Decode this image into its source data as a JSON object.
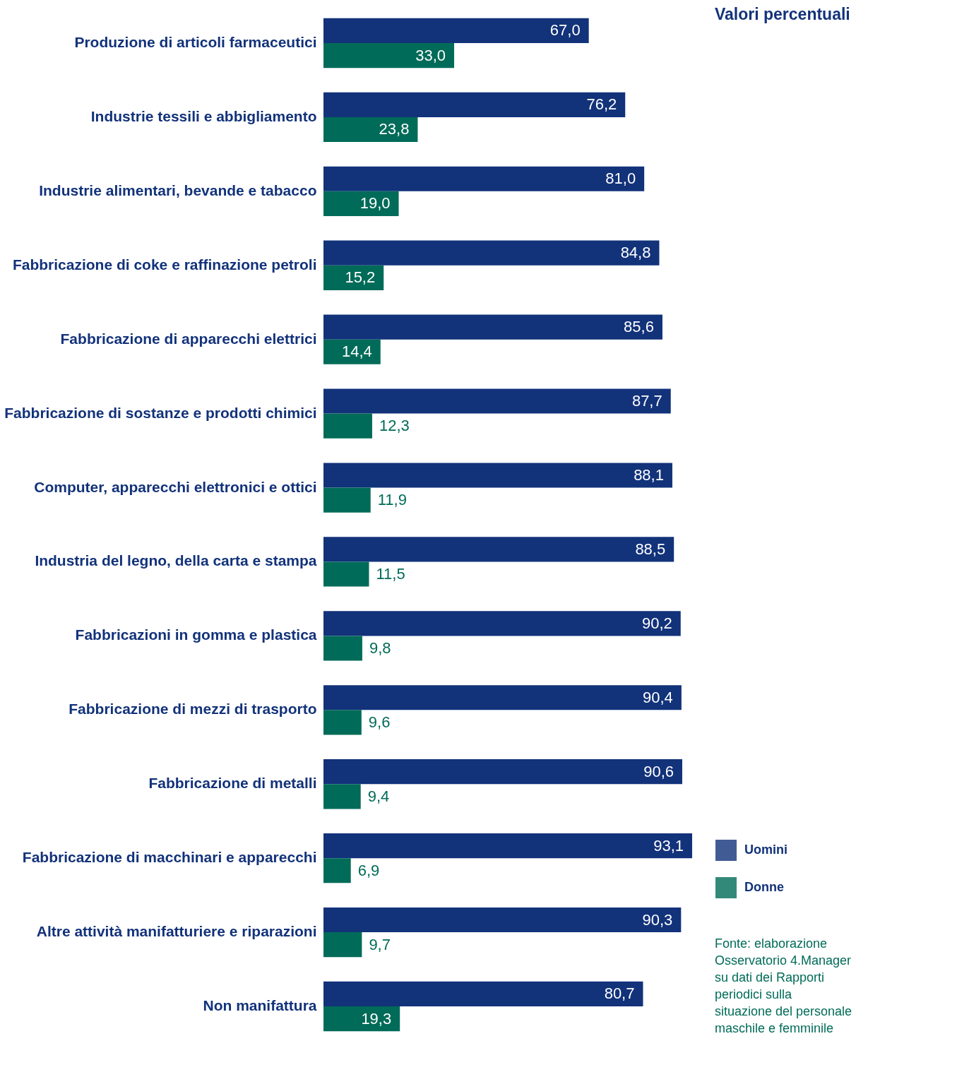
{
  "chart_data": {
    "type": "bar",
    "orientation": "horizontal",
    "title": "Valori percentuali",
    "categories": [
      "Produzione di articoli farmaceutici",
      "Industrie tessili e abbigliamento",
      "Industrie alimentari, bevande e tabacco",
      "Fabbricazione di coke e raffinazione petroli",
      "Fabbricazione di apparecchi elettrici",
      "Fabbricazione di sostanze e prodotti chimici",
      "Computer, apparecchi elettronici e ottici",
      "Industria del legno, della carta e stampa",
      "Fabbricazioni in gomma e plastica",
      "Fabbricazione di mezzi di trasporto",
      "Fabbricazione di metalli",
      "Fabbricazione di macchinari e apparecchi",
      "Altre attività manifatturiere e riparazioni",
      "Non manifattura"
    ],
    "series": [
      {
        "name": "Uomini",
        "color": "#12327a",
        "values": [
          67.0,
          76.2,
          81.0,
          84.8,
          85.6,
          87.7,
          88.1,
          88.5,
          90.2,
          90.4,
          90.6,
          93.1,
          90.3,
          80.7
        ],
        "value_labels": [
          "67,0",
          "76,2",
          "81,0",
          "84,8",
          "85,6",
          "87,7",
          "88,1",
          "88,5",
          "90,2",
          "90,4",
          "90,6",
          "93,1",
          "90,3",
          "80,7"
        ]
      },
      {
        "name": "Donne",
        "color": "#006b58",
        "values": [
          33.0,
          23.8,
          19.0,
          15.2,
          14.4,
          12.3,
          11.9,
          11.5,
          9.8,
          9.6,
          9.4,
          6.9,
          9.7,
          19.3
        ],
        "value_labels": [
          "33,0",
          "23,8",
          "19,0",
          "15,2",
          "14,4",
          "12,3",
          "11,9",
          "11,5",
          "9,8",
          "9,6",
          "9,4",
          "6,9",
          "9,7",
          "19,3"
        ]
      }
    ],
    "legend": "bottom right",
    "annotations": [
      "Fonte: elaborazione Osservatorio 4.Manager su dati dei Rapporti periodici sulla situazione del personale maschile e femminile"
    ]
  }
}
